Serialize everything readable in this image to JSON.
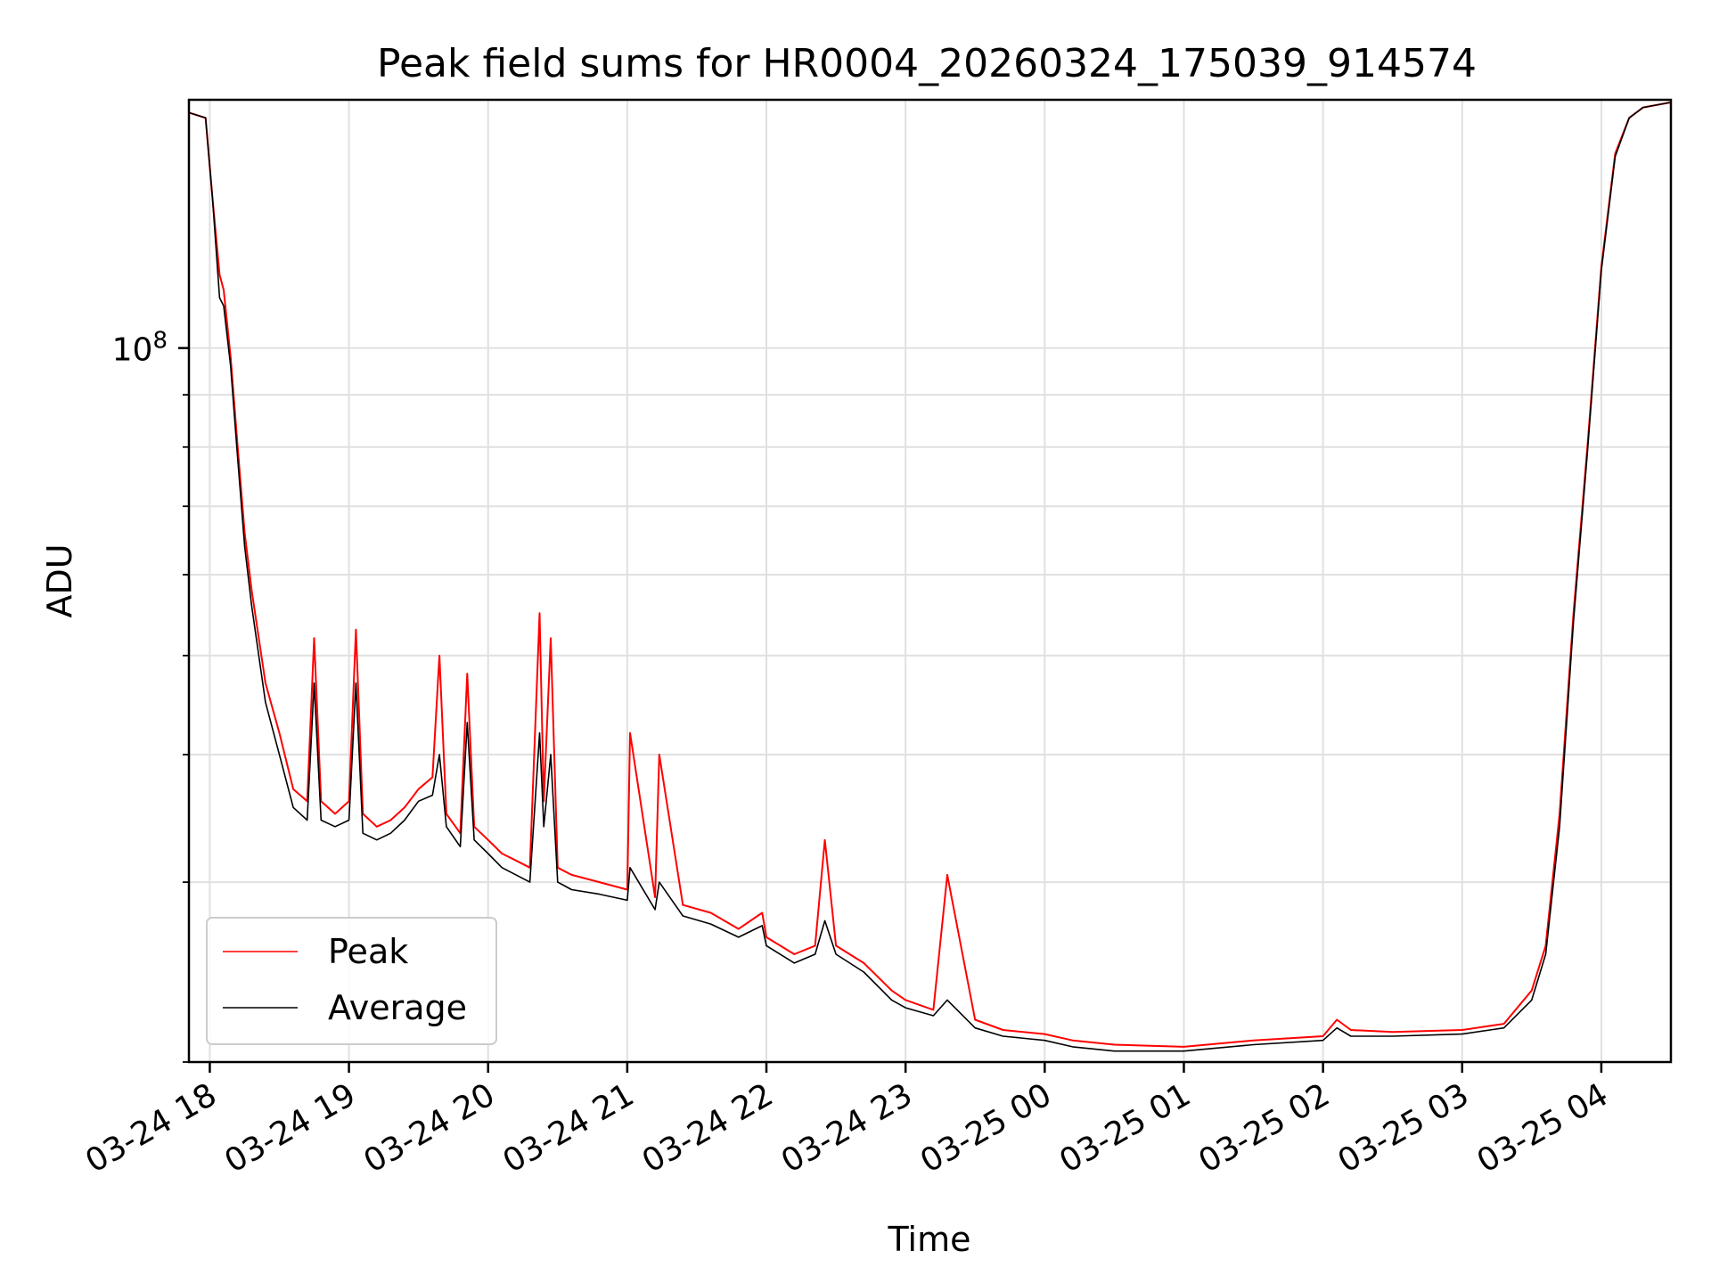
{
  "chart_data": {
    "type": "line",
    "title": "Peak field sums for HR0004_20260324_175039_914574",
    "xlabel": "Time",
    "ylabel": "ADU",
    "y_scale": "log",
    "ylim": [
      20000000,
      175000000
    ],
    "xlim_hours": [
      17.85,
      28.5
    ],
    "x_ticks": [
      {
        "hour": 18,
        "label": "03-24 18"
      },
      {
        "hour": 19,
        "label": "03-24 19"
      },
      {
        "hour": 20,
        "label": "03-24 20"
      },
      {
        "hour": 21,
        "label": "03-24 21"
      },
      {
        "hour": 22,
        "label": "03-24 22"
      },
      {
        "hour": 23,
        "label": "03-24 23"
      },
      {
        "hour": 24,
        "label": "03-25 00"
      },
      {
        "hour": 25,
        "label": "03-25 01"
      },
      {
        "hour": 26,
        "label": "03-25 02"
      },
      {
        "hour": 27,
        "label": "03-25 03"
      },
      {
        "hour": 28,
        "label": "03-25 04"
      }
    ],
    "y_ticks": [
      {
        "value": 100000000,
        "base": "10",
        "exp": "8"
      }
    ],
    "grid": true,
    "legend_position": "lower-left",
    "series": [
      {
        "name": "Peak",
        "color": "#ff0000",
        "x": [
          17.85,
          17.97,
          18.02,
          18.07,
          18.1,
          18.15,
          18.2,
          18.25,
          18.3,
          18.4,
          18.5,
          18.6,
          18.7,
          18.75,
          18.8,
          18.9,
          19.0,
          19.05,
          19.1,
          19.2,
          19.3,
          19.4,
          19.5,
          19.6,
          19.65,
          19.7,
          19.8,
          19.85,
          19.9,
          20.0,
          20.1,
          20.2,
          20.3,
          20.37,
          20.4,
          20.45,
          20.5,
          20.6,
          20.8,
          21.0,
          21.02,
          21.2,
          21.23,
          21.4,
          21.6,
          21.8,
          21.97,
          22.0,
          22.2,
          22.35,
          22.42,
          22.5,
          22.7,
          22.9,
          23.0,
          23.2,
          23.3,
          23.5,
          23.7,
          24.0,
          24.2,
          24.5,
          25.0,
          25.5,
          26.0,
          26.1,
          26.2,
          26.5,
          27.0,
          27.2,
          27.3,
          27.5,
          27.6,
          27.7,
          27.8,
          27.9,
          28.0,
          28.1,
          28.2,
          28.3,
          28.5
        ],
        "y": [
          170000000,
          168000000,
          140000000,
          118000000,
          114000000,
          98000000,
          80000000,
          66000000,
          58000000,
          47000000,
          42000000,
          37000000,
          36000000,
          52000000,
          36000000,
          35000000,
          36000000,
          53000000,
          35000000,
          34000000,
          34500000,
          35500000,
          37000000,
          38000000,
          50000000,
          35000000,
          33500000,
          48000000,
          34000000,
          33000000,
          32000000,
          31500000,
          31000000,
          55000000,
          36000000,
          52000000,
          31000000,
          30500000,
          30000000,
          29500000,
          42000000,
          29000000,
          40000000,
          28500000,
          28000000,
          27000000,
          28000000,
          26500000,
          25500000,
          26000000,
          33000000,
          26000000,
          25000000,
          23500000,
          23000000,
          22500000,
          30500000,
          22000000,
          21500000,
          21300000,
          21000000,
          20800000,
          20700000,
          21000000,
          21200000,
          22000000,
          21500000,
          21400000,
          21500000,
          21700000,
          21800000,
          23500000,
          26000000,
          35000000,
          55000000,
          80000000,
          120000000,
          155000000,
          168000000,
          172000000,
          174000000
        ]
      },
      {
        "name": "Average",
        "color": "#000000",
        "x": [
          17.85,
          17.97,
          18.02,
          18.07,
          18.1,
          18.15,
          18.2,
          18.25,
          18.3,
          18.4,
          18.5,
          18.6,
          18.7,
          18.75,
          18.8,
          18.9,
          19.0,
          19.05,
          19.1,
          19.2,
          19.3,
          19.4,
          19.5,
          19.6,
          19.65,
          19.7,
          19.8,
          19.85,
          19.9,
          20.0,
          20.1,
          20.2,
          20.3,
          20.37,
          20.4,
          20.45,
          20.5,
          20.6,
          20.8,
          21.0,
          21.02,
          21.2,
          21.23,
          21.4,
          21.6,
          21.8,
          21.97,
          22.0,
          22.2,
          22.35,
          22.42,
          22.5,
          22.7,
          22.9,
          23.0,
          23.2,
          23.3,
          23.5,
          23.7,
          24.0,
          24.2,
          24.5,
          25.0,
          25.5,
          26.0,
          26.1,
          26.2,
          26.5,
          27.0,
          27.2,
          27.3,
          27.5,
          27.6,
          27.7,
          27.8,
          27.9,
          28.0,
          28.1,
          28.2,
          28.3,
          28.5
        ],
        "y": [
          170000000,
          168000000,
          140000000,
          112000000,
          110000000,
          96000000,
          78000000,
          64000000,
          56000000,
          45000000,
          40000000,
          35500000,
          34500000,
          47000000,
          34500000,
          34000000,
          34500000,
          47000000,
          33500000,
          33000000,
          33500000,
          34500000,
          36000000,
          36500000,
          40000000,
          34000000,
          32500000,
          43000000,
          33000000,
          32000000,
          31000000,
          30500000,
          30000000,
          42000000,
          34000000,
          40000000,
          30000000,
          29500000,
          29200000,
          28800000,
          31000000,
          28200000,
          30000000,
          27800000,
          27300000,
          26500000,
          27200000,
          26000000,
          25000000,
          25500000,
          27500000,
          25500000,
          24500000,
          23000000,
          22600000,
          22200000,
          23000000,
          21600000,
          21200000,
          21000000,
          20700000,
          20500000,
          20500000,
          20800000,
          21000000,
          21600000,
          21200000,
          21200000,
          21300000,
          21500000,
          21600000,
          23000000,
          25500000,
          34000000,
          54000000,
          79000000,
          119000000,
          154000000,
          168000000,
          172000000,
          174000000
        ]
      }
    ]
  }
}
